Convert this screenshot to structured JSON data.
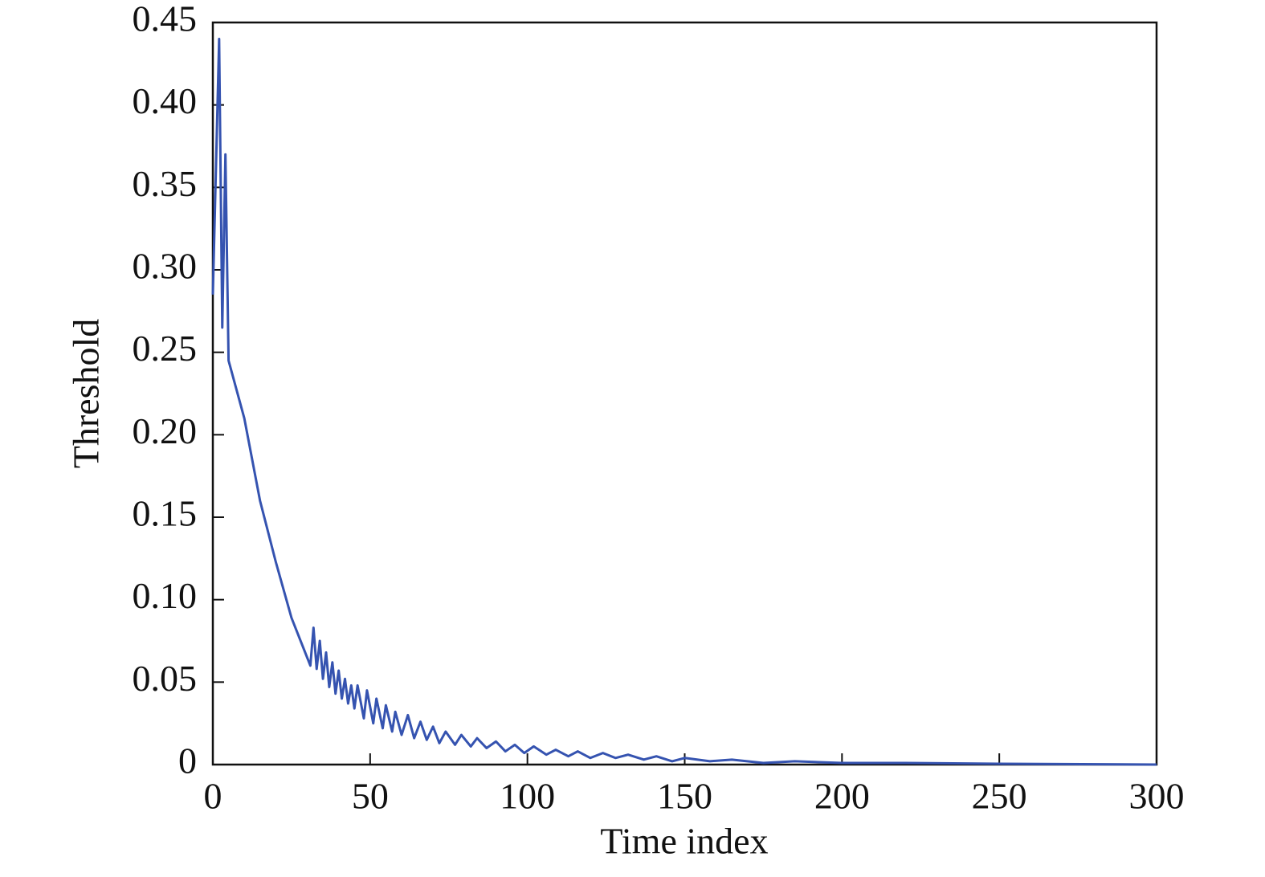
{
  "chart_data": {
    "type": "line",
    "x_label": "Time index",
    "y_label": "Threshold",
    "x": [
      0,
      2,
      3,
      4,
      5,
      10,
      15,
      20,
      25,
      31,
      32,
      33,
      34,
      35,
      36,
      37,
      38,
      39,
      40,
      41,
      42,
      43,
      44,
      45,
      46,
      48,
      49,
      51,
      52,
      54,
      55,
      57,
      58,
      60,
      62,
      64,
      66,
      68,
      70,
      72,
      74,
      77,
      79,
      82,
      84,
      87,
      90,
      93,
      96,
      99,
      102,
      106,
      109,
      113,
      116,
      120,
      124,
      128,
      132,
      137,
      141,
      146,
      150,
      158,
      165,
      175,
      185,
      200,
      220,
      250,
      300
    ],
    "series": [
      {
        "name": "Threshold",
        "color": "#3553b0",
        "values": [
          0.285,
          0.44,
          0.265,
          0.37,
          0.245,
          0.21,
          0.16,
          0.123,
          0.089,
          0.06,
          0.083,
          0.058,
          0.075,
          0.052,
          0.068,
          0.047,
          0.062,
          0.043,
          0.057,
          0.04,
          0.052,
          0.037,
          0.048,
          0.034,
          0.048,
          0.028,
          0.045,
          0.025,
          0.04,
          0.022,
          0.036,
          0.02,
          0.032,
          0.018,
          0.03,
          0.016,
          0.026,
          0.015,
          0.023,
          0.013,
          0.02,
          0.012,
          0.018,
          0.011,
          0.016,
          0.01,
          0.014,
          0.008,
          0.012,
          0.007,
          0.011,
          0.006,
          0.009,
          0.005,
          0.008,
          0.004,
          0.007,
          0.004,
          0.006,
          0.003,
          0.005,
          0.002,
          0.004,
          0.002,
          0.003,
          0.001,
          0.002,
          0.001,
          0.001,
          0.0005,
          0
        ]
      }
    ],
    "xlim": [
      0,
      300
    ],
    "xticks": [
      0,
      50,
      100,
      150,
      200,
      250,
      300
    ],
    "ylim": [
      0,
      0.45
    ],
    "yticks": [
      0,
      0.05,
      {
        "value": 0.1,
        "label": "0.10"
      },
      0.15,
      {
        "value": 0.2,
        "label": "0.20"
      },
      0.25,
      {
        "value": 0.3,
        "label": "0.30"
      },
      0.35,
      {
        "value": 0.4,
        "label": "0.40"
      },
      0.45
    ],
    "grid": false
  }
}
